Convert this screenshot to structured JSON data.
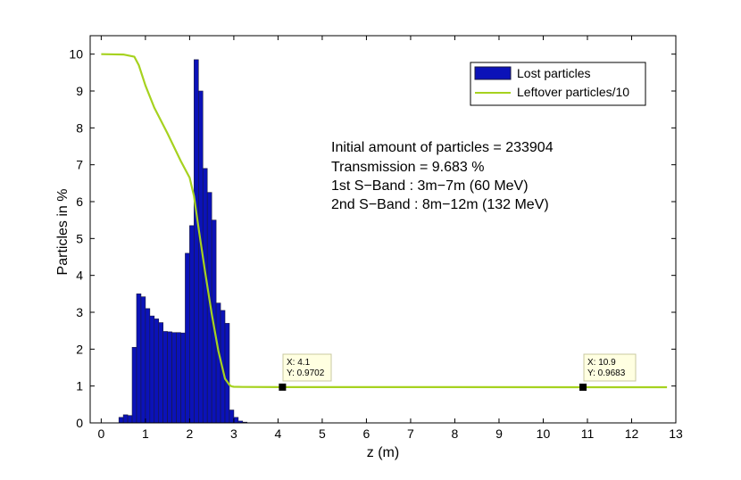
{
  "chart_data": {
    "type": "bar",
    "xlabel": "z (m)",
    "ylabel": "Particles in %",
    "xlim": [
      -0.25,
      13
    ],
    "ylim": [
      0,
      10.5
    ],
    "xticks": [
      "0",
      "1",
      "2",
      "3",
      "4",
      "5",
      "6",
      "7",
      "8",
      "9",
      "10",
      "11",
      "12",
      "13"
    ],
    "yticks": [
      "0",
      "1",
      "2",
      "3",
      "4",
      "5",
      "6",
      "7",
      "8",
      "9",
      "10"
    ],
    "grid": false,
    "legend_position": "top-right",
    "bar_width": 0.1,
    "series": [
      {
        "name": "Lost particles",
        "kind": "bar",
        "color": "#0b12b8",
        "edge_color": "#1a1a40",
        "x": [
          0.45,
          0.55,
          0.65,
          0.75,
          0.85,
          0.95,
          1.05,
          1.15,
          1.25,
          1.35,
          1.45,
          1.55,
          1.65,
          1.75,
          1.85,
          1.95,
          2.05,
          2.15,
          2.25,
          2.35,
          2.45,
          2.55,
          2.65,
          2.75,
          2.85,
          2.95,
          3.05,
          3.15,
          3.25
        ],
        "values": [
          0.15,
          0.22,
          0.2,
          2.05,
          3.5,
          3.42,
          3.1,
          2.9,
          2.82,
          2.72,
          2.48,
          2.47,
          2.45,
          2.45,
          2.44,
          4.6,
          5.35,
          9.85,
          9.0,
          6.9,
          6.25,
          5.5,
          3.25,
          3.05,
          2.7,
          0.35,
          0.15,
          0.05,
          0.02
        ]
      },
      {
        "name": "Leftover particles/10",
        "kind": "line",
        "color": "#a6d21f",
        "x": [
          0,
          0.5,
          0.75,
          0.85,
          1.0,
          1.2,
          1.5,
          1.8,
          2.0,
          2.1,
          2.2,
          2.35,
          2.5,
          2.65,
          2.8,
          2.9,
          2.95,
          3.0,
          3.2,
          4.1,
          6,
          8,
          10.9,
          12.8
        ],
        "values": [
          10.0,
          9.99,
          9.93,
          9.7,
          9.15,
          8.55,
          7.85,
          7.1,
          6.65,
          6.15,
          5.3,
          4.1,
          2.95,
          1.95,
          1.2,
          1.03,
          0.99,
          0.98,
          0.975,
          0.9702,
          0.97,
          0.969,
          0.9683,
          0.9683
        ]
      }
    ],
    "annotations": {
      "text_lines": [
        "Initial amount of particles = 233904",
        "Transmission = 9.683 %",
        "1st S−Band : 3m−7m (60 MeV)",
        "2nd S−Band : 8m−12m (132 MeV)"
      ],
      "datatips": [
        {
          "x": 4.1,
          "y": 0.9702,
          "label_x": "X: 4.1",
          "label_y": "Y: 0.9702"
        },
        {
          "x": 10.9,
          "y": 0.9683,
          "label_x": "X: 10.9",
          "label_y": "Y: 0.9683"
        }
      ]
    }
  }
}
